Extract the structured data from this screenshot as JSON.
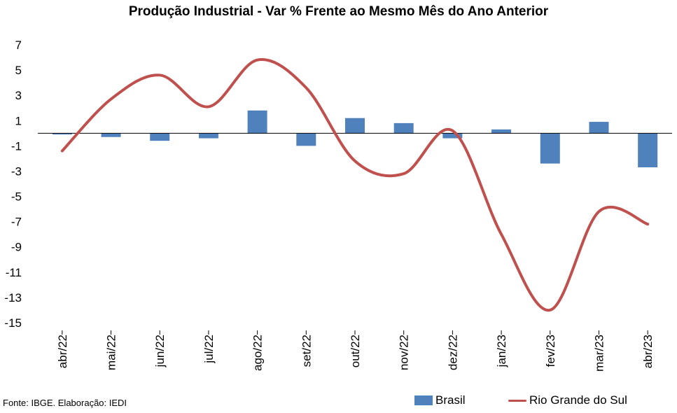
{
  "chart_data": {
    "type": "bar+line",
    "title": "Produção Industrial - Var % Frente ao Mesmo Mês do Ano Anterior",
    "categories": [
      "abr/22",
      "mai/22",
      "jun/22",
      "jul/22",
      "ago/22",
      "set/22",
      "out/22",
      "nov/22",
      "dez/22",
      "jan/23",
      "fev/23",
      "mar/23",
      "abr/23"
    ],
    "series": [
      {
        "name": "Brasil",
        "type": "bar",
        "color": "#4F81BD",
        "values": [
          -0.1,
          -0.3,
          -0.6,
          -0.4,
          1.8,
          -1.0,
          1.2,
          0.8,
          -0.4,
          0.3,
          -2.4,
          0.9,
          -2.7
        ]
      },
      {
        "name": "Rio Grande do Sul",
        "type": "line",
        "color": "#C0504D",
        "values": [
          -1.4,
          2.7,
          4.6,
          2.1,
          5.8,
          3.6,
          -2.2,
          -3.2,
          0.2,
          -8.0,
          -14.0,
          -6.2,
          -7.2
        ]
      }
    ],
    "ylim": [
      -15,
      7
    ],
    "yticks": [
      "7",
      "5",
      "3",
      "1",
      "-1",
      "-3",
      "-5",
      "-7",
      "-9",
      "-11",
      "-13",
      "-15"
    ],
    "legend": "bottom",
    "grid": false
  },
  "source": "Fonte: IBGE. Elaboração: IEDI"
}
